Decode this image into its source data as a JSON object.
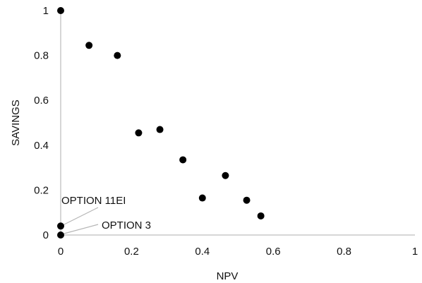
{
  "chart_data": {
    "type": "scatter",
    "xlabel": "NPV",
    "ylabel": "SAVINGS",
    "xlim": [
      0,
      1
    ],
    "ylim": [
      0,
      1
    ],
    "xticks": [
      0,
      0.2,
      0.4,
      0.6,
      0.8,
      1
    ],
    "yticks": [
      0,
      0.2,
      0.4,
      0.6,
      0.8,
      1
    ],
    "xtick_labels": [
      "0",
      "0.2",
      "0.4",
      "0.6",
      "0.8",
      "1"
    ],
    "ytick_labels": [
      "0",
      "0.2",
      "0.4",
      "0.6",
      "0.8",
      "1"
    ],
    "grid": false,
    "legend": "none",
    "marker_color": "#000000",
    "axis_color": "#c8c8c8",
    "series": [
      {
        "points": [
          {
            "x": 0.0,
            "y": 1.0
          },
          {
            "x": 0.08,
            "y": 0.845
          },
          {
            "x": 0.16,
            "y": 0.8
          },
          {
            "x": 0.22,
            "y": 0.455
          },
          {
            "x": 0.28,
            "y": 0.47
          },
          {
            "x": 0.345,
            "y": 0.335
          },
          {
            "x": 0.4,
            "y": 0.165
          },
          {
            "x": 0.465,
            "y": 0.265
          },
          {
            "x": 0.525,
            "y": 0.155
          },
          {
            "x": 0.565,
            "y": 0.085
          },
          {
            "x": 0.0,
            "y": 0.04
          },
          {
            "x": 0.0,
            "y": 0.0
          }
        ]
      }
    ],
    "annotations": [
      {
        "text": "OPTION 11EI",
        "x": 0.0,
        "y": 0.04
      },
      {
        "text": "OPTION 3",
        "x": 0.0,
        "y": 0.0
      }
    ]
  }
}
